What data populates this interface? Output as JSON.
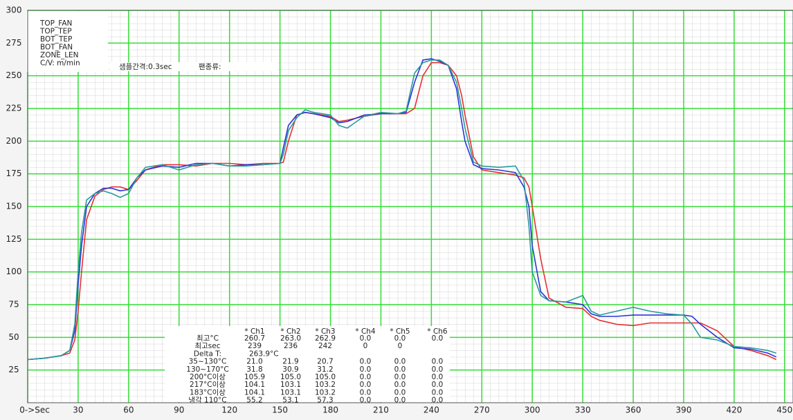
{
  "chart_data": {
    "type": "line",
    "x": [
      0,
      10,
      20,
      25,
      28,
      30,
      32,
      35,
      40,
      45,
      50,
      55,
      60,
      65,
      70,
      80,
      90,
      100,
      110,
      120,
      130,
      140,
      150,
      152,
      155,
      160,
      165,
      170,
      180,
      185,
      190,
      200,
      210,
      220,
      225,
      230,
      235,
      240,
      245,
      250,
      255,
      258,
      260,
      265,
      270,
      280,
      290,
      295,
      298,
      300,
      305,
      310,
      320,
      330,
      335,
      340,
      350,
      360,
      370,
      380,
      390,
      395,
      400,
      410,
      420,
      430,
      440,
      445
    ],
    "series": [
      {
        "name": "* Ch1",
        "color": "#e53030",
        "values": [
          33,
          34,
          36,
          38,
          48,
          70,
          100,
          140,
          158,
          163,
          165,
          165,
          163,
          170,
          178,
          182,
          182,
          181,
          183,
          183,
          182,
          183,
          183,
          184,
          200,
          220,
          222,
          221,
          219,
          215,
          216,
          219,
          221,
          221,
          221,
          225,
          250,
          260,
          260,
          258,
          250,
          235,
          220,
          188,
          178,
          176,
          174,
          172,
          165,
          150,
          110,
          80,
          73,
          72,
          66,
          63,
          60,
          59,
          61,
          61,
          61,
          61,
          61,
          55,
          43,
          40,
          36,
          33
        ]
      },
      {
        "name": "* Ch2",
        "color": "#2a35d8",
        "values": [
          33,
          34,
          36,
          40,
          55,
          90,
          120,
          150,
          160,
          164,
          164,
          162,
          163,
          172,
          178,
          181,
          180,
          183,
          183,
          181,
          182,
          182,
          183,
          195,
          212,
          220,
          222,
          221,
          218,
          214,
          215,
          220,
          221,
          221,
          222,
          245,
          262,
          263,
          261,
          258,
          240,
          215,
          200,
          182,
          179,
          178,
          176,
          165,
          150,
          120,
          85,
          78,
          77,
          75,
          68,
          66,
          66,
          67,
          67,
          67,
          67,
          66,
          60,
          50,
          42,
          41,
          38,
          35
        ]
      },
      {
        "name": "* Ch3",
        "color": "#2a9a9a",
        "values": [
          33,
          34,
          36,
          40,
          60,
          100,
          130,
          155,
          160,
          162,
          160,
          157,
          160,
          172,
          180,
          182,
          178,
          182,
          183,
          181,
          181,
          182,
          183,
          190,
          208,
          218,
          224,
          222,
          220,
          212,
          210,
          219,
          222,
          221,
          223,
          252,
          260,
          262,
          262,
          258,
          245,
          225,
          210,
          184,
          181,
          180,
          181,
          170,
          135,
          100,
          82,
          78,
          77,
          82,
          70,
          67,
          70,
          73,
          70,
          68,
          67,
          60,
          50,
          48,
          43,
          42,
          40,
          38
        ]
      }
    ],
    "xlim": [
      0,
      455
    ],
    "ylim": [
      0,
      300
    ],
    "xticks": [
      {
        "value": 0,
        "label": "0->Sec"
      },
      30,
      60,
      90,
      120,
      150,
      180,
      210,
      240,
      270,
      300,
      330,
      360,
      390,
      420,
      450
    ],
    "yticks": [
      25,
      50,
      75,
      100,
      125,
      150,
      175,
      200,
      225,
      250,
      275,
      300
    ],
    "grid": true,
    "grid_color": "#33dd33",
    "info_box": [
      "TOP_FAN",
      "TOP_TEP",
      "BOT_TEP",
      "BOT_FAN",
      "ZONE_LEN",
      "C/V: m/min"
    ],
    "info_line": [
      "샘플간격:0.3sec",
      "팬종류:"
    ],
    "stats_table": {
      "extra_columns": [
        {
          "name": "* Ch4",
          "color": "#9a2a9a"
        },
        {
          "name": "* Ch5",
          "color": "#229922"
        },
        {
          "name": "* Ch6",
          "color": "#aaaaaa"
        }
      ],
      "rows": [
        {
          "label": "최고°C",
          "cells": [
            "260.7",
            "263.0",
            "262.9",
            "0.0",
            "0.0",
            "0.0"
          ]
        },
        {
          "label": "최고sec",
          "cells": [
            "239",
            "236",
            "242",
            "0",
            "0"
          ]
        },
        {
          "label": "Delta T:",
          "cells": [
            "263.9°C"
          ]
        },
        {
          "label": "35~130°C",
          "cells": [
            "21.0",
            "21.9",
            "20.7",
            "0.0",
            "0.0",
            "0.0"
          ]
        },
        {
          "label": "130~170°C",
          "cells": [
            "31.8",
            "30.9",
            "31.2",
            "0.0",
            "0.0",
            "0.0"
          ]
        },
        {
          "label": "200°C이상",
          "cells": [
            "105.9",
            "105.0",
            "105.0",
            "0.0",
            "0.0",
            "0.0"
          ]
        },
        {
          "label": "217°C이상",
          "cells": [
            "104.1",
            "103.1",
            "103.2",
            "0.0",
            "0.0",
            "0.0"
          ]
        },
        {
          "label": "183°C이상",
          "cells": [
            "104.1",
            "103.1",
            "103.2",
            "0.0",
            "0.0",
            "0.0"
          ]
        },
        {
          "label": "냉각 110°C",
          "cells": [
            "55.2",
            "53.1",
            "57.3",
            "0.0",
            "0.0",
            "0.0"
          ]
        }
      ]
    }
  }
}
